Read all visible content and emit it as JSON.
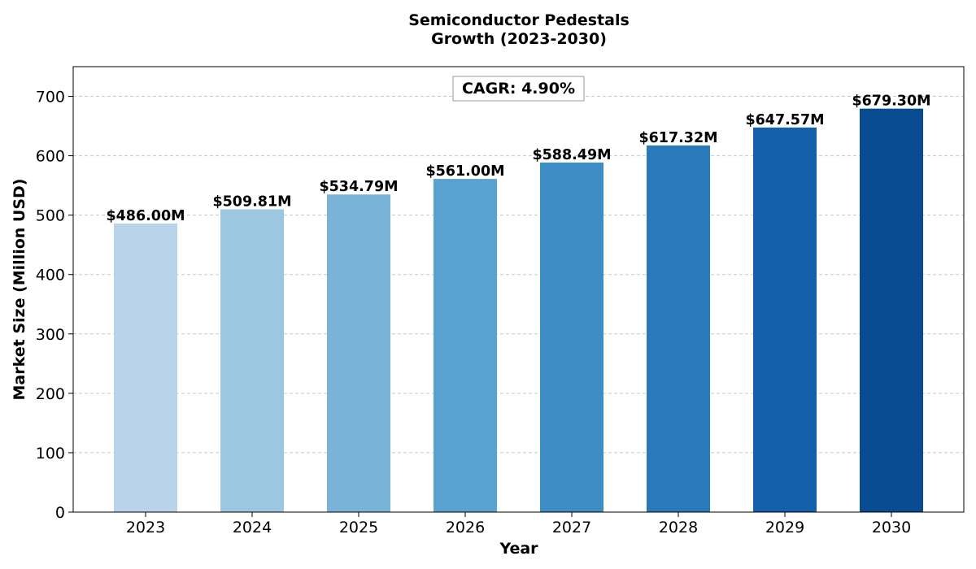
{
  "chart_data": {
    "type": "bar",
    "title_lines": [
      "Semiconductor Pedestals",
      "Growth (2023-2030)"
    ],
    "xlabel": "Year",
    "ylabel": "Market Size (Million USD)",
    "categories": [
      "2023",
      "2024",
      "2025",
      "2026",
      "2027",
      "2028",
      "2029",
      "2030"
    ],
    "values": [
      486.0,
      509.81,
      534.79,
      561.0,
      588.49,
      617.32,
      647.57,
      679.3
    ],
    "value_labels": [
      "$486.00M",
      "$509.81M",
      "$534.79M",
      "$561.00M",
      "$588.49M",
      "$617.32M",
      "$647.57M",
      "$679.30M"
    ],
    "bar_colors": [
      "#b9d4ea",
      "#9cc7e0",
      "#79b4d8",
      "#5aa2cf",
      "#3f8dc5",
      "#2979bb",
      "#1460aa",
      "#094b91"
    ],
    "ylim": [
      0,
      750
    ],
    "yticks": [
      0,
      100,
      200,
      300,
      400,
      500,
      600,
      700
    ],
    "grid": "horizontal-dashed",
    "annotation": "CAGR: 4.90%"
  }
}
